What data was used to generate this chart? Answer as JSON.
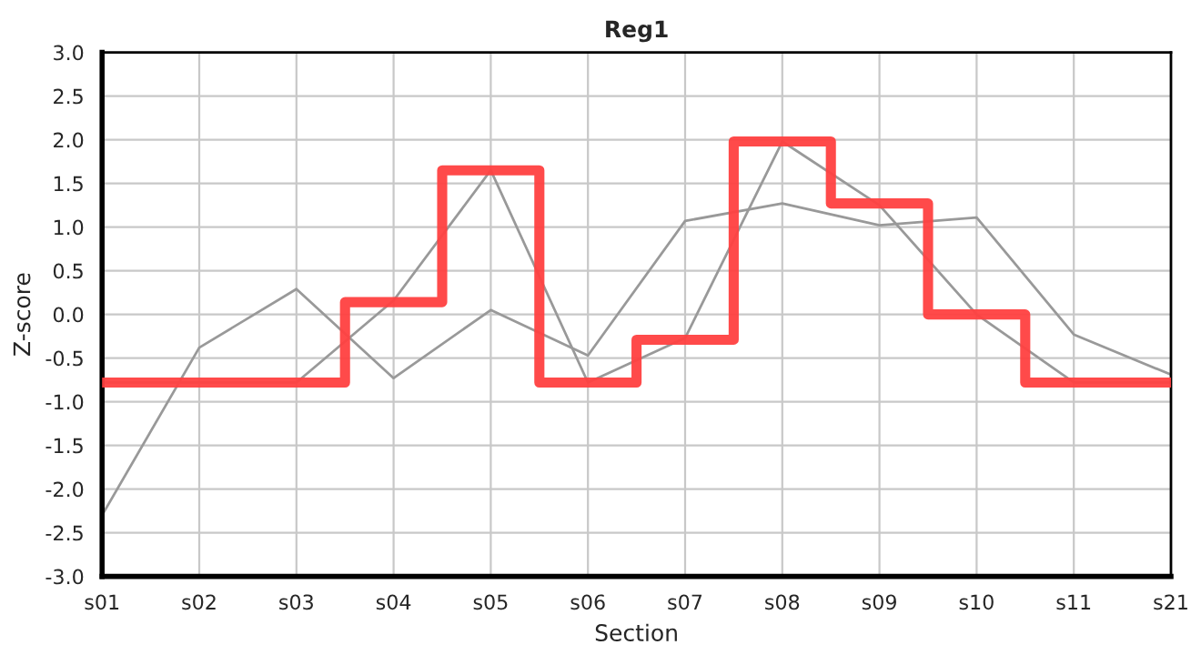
{
  "chart_data": {
    "type": "line",
    "title": "Reg1",
    "xlabel": "Section",
    "ylabel": "Z-score",
    "categories": [
      "s01",
      "s02",
      "s03",
      "s04",
      "s05",
      "s06",
      "s07",
      "s08",
      "s09",
      "s10",
      "s11",
      "s21"
    ],
    "series": [
      {
        "color": "#999999",
        "values": [
          -2.3,
          -0.38,
          0.29,
          -0.73,
          0.05,
          -0.47,
          1.07,
          1.27,
          1.02,
          1.11,
          -0.23,
          -0.69
        ]
      },
      {
        "color": "#999999",
        "values": [
          -0.78,
          -0.78,
          -0.78,
          0.16,
          1.65,
          -0.78,
          -0.27,
          1.98,
          1.25,
          0.0,
          -0.78,
          -0.78
        ]
      },
      {
        "type": "step",
        "color": "#ff4040",
        "values": [
          -0.78,
          -0.78,
          -0.78,
          0.14,
          1.65,
          -0.78,
          -0.29,
          1.98,
          1.27,
          0.0,
          -0.78,
          -0.78
        ]
      }
    ],
    "ylim": [
      -3,
      3
    ],
    "yticks": [
      {
        "value": -3,
        "label": "-3.0"
      },
      {
        "value": -2.5,
        "label": "-2.5"
      },
      {
        "value": -2,
        "label": "-2.0"
      },
      {
        "value": -1.5,
        "label": "-1.5"
      },
      {
        "value": -1,
        "label": "-1.0"
      },
      {
        "value": -0.5,
        "label": "-0.5"
      },
      {
        "value": 0,
        "label": "0.0"
      },
      {
        "value": 0.5,
        "label": "0.5"
      },
      {
        "value": 1,
        "label": "1.0"
      },
      {
        "value": 1.5,
        "label": "1.5"
      },
      {
        "value": 2,
        "label": "2.0"
      },
      {
        "value": 2.5,
        "label": "2.5"
      },
      {
        "value": 3,
        "label": "3.0"
      }
    ],
    "grid": true
  }
}
